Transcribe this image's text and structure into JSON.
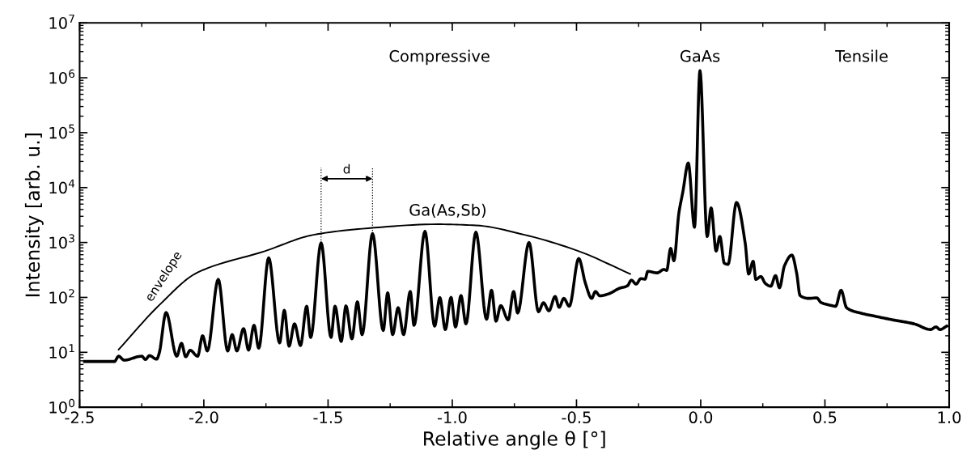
{
  "chart_data": {
    "type": "line",
    "xlabel": "Relative angle θ [°]",
    "ylabel": "Intensity [arb. u.]",
    "log": "y",
    "xlim": [
      -2.5,
      1.0
    ],
    "xticks": [
      {
        "value": -2.5,
        "label": "-2.5"
      },
      {
        "value": -2.0,
        "label": "-2.0"
      },
      {
        "value": -1.5,
        "label": "-1.5"
      },
      {
        "value": -1.0,
        "label": "-1.0"
      },
      {
        "value": -0.5,
        "label": "-0.5"
      },
      {
        "value": 0.0,
        "label": "0.0"
      },
      {
        "value": 0.5,
        "label": "0.5"
      },
      {
        "value": 1.0,
        "label": "1.0"
      }
    ],
    "ylim": [
      1,
      10000000
    ],
    "yticks": [
      {
        "value": 1,
        "label": "10$^{0}$"
      },
      {
        "value": 10,
        "label": "10$^{1}$"
      },
      {
        "value": 100,
        "label": "10$^{2}$"
      },
      {
        "value": 1000,
        "label": "10$^{3}$"
      },
      {
        "value": 10000,
        "label": "10$^{4}$"
      },
      {
        "value": 100000,
        "label": "10$^{5}$"
      },
      {
        "value": 1000000,
        "label": "10$^{6}$"
      },
      {
        "value": 10000000,
        "label": "10$^{7}$"
      }
    ],
    "grid": false,
    "legend": false,
    "marker": "none",
    "line_style": "solid",
    "series": [
      {
        "color": "#000000",
        "x": [
          -2.48,
          -2.36,
          -2.343,
          -2.321,
          -2.25,
          -2.235,
          -2.219,
          -2.19,
          -2.18,
          -2.152,
          -2.109,
          -2.09,
          -2.073,
          -2.055,
          -2.025,
          -2.005,
          -1.986,
          -1.942,
          -1.904,
          -1.886,
          -1.867,
          -1.84,
          -1.82,
          -1.798,
          -1.779,
          -1.739,
          -1.695,
          -1.676,
          -1.657,
          -1.635,
          -1.611,
          -1.586,
          -1.57,
          -1.528,
          -1.488,
          -1.472,
          -1.447,
          -1.428,
          -1.404,
          -1.382,
          -1.363,
          -1.321,
          -1.278,
          -1.26,
          -1.24,
          -1.218,
          -1.196,
          -1.169,
          -1.154,
          -1.11,
          -1.071,
          -1.05,
          -1.028,
          -1.005,
          -0.987,
          -0.965,
          -0.945,
          -0.905,
          -0.862,
          -0.842,
          -0.824,
          -0.805,
          -0.775,
          -0.753,
          -0.737,
          -0.691,
          -0.653,
          -0.633,
          -0.611,
          -0.586,
          -0.57,
          -0.551,
          -0.529,
          -0.491,
          -0.464,
          -0.439,
          -0.424,
          -0.406,
          -0.371,
          -0.328,
          -0.295,
          -0.279,
          -0.26,
          -0.241,
          -0.224,
          -0.213,
          -0.175,
          -0.148,
          -0.137,
          -0.121,
          -0.108,
          -0.088,
          -0.072,
          -0.05,
          -0.025,
          -0.003,
          0.026,
          0.042,
          0.062,
          0.077,
          0.095,
          0.11,
          0.144,
          0.179,
          0.193,
          0.211,
          0.222,
          0.242,
          0.26,
          0.282,
          0.301,
          0.317,
          0.337,
          0.367,
          0.386,
          0.4,
          0.435,
          0.467,
          0.484,
          0.522,
          0.543,
          0.565,
          0.587,
          0.642,
          0.696,
          0.773,
          0.859,
          0.925,
          0.947,
          0.963,
          0.99
        ],
        "values": [
          6.8,
          6.8,
          8.5,
          7.2,
          8.5,
          7.4,
          8.7,
          7.5,
          9.5,
          53,
          8.5,
          14.6,
          8.3,
          10.9,
          8.5,
          20,
          10.6,
          213,
          10.6,
          21,
          10.6,
          27,
          11,
          31,
          11.9,
          525,
          14.9,
          58,
          13,
          33,
          13.3,
          69,
          18.7,
          980,
          18.7,
          69,
          15.8,
          70,
          17.6,
          83,
          21,
          1450,
          25,
          121,
          21,
          65,
          21,
          128,
          31,
          1590,
          30,
          99,
          26,
          100,
          29,
          108,
          33,
          1540,
          40,
          135,
          37,
          71,
          39,
          128,
          52,
          1000,
          55,
          80,
          57,
          104,
          66,
          96,
          69,
          510,
          180,
          96,
          128,
          107,
          116,
          146,
          163,
          206,
          175,
          220,
          215,
          298,
          280,
          323,
          310,
          780,
          467,
          3400,
          8300,
          28000,
          1900,
          1350000,
          1290,
          4250,
          700,
          1290,
          420,
          400,
          5350,
          980,
          267,
          455,
          213,
          240,
          180,
          160,
          250,
          150,
          375,
          590,
          280,
          108,
          96,
          98,
          81,
          72,
          69,
          135,
          65,
          52,
          46,
          39,
          33,
          26,
          29,
          26,
          30
        ]
      },
      {
        "name": "envelope",
        "color": "#000000",
        "x": [
          -2.343,
          -2.18,
          -2.027,
          -1.755,
          -1.559,
          -1.363,
          -1.058,
          -0.905,
          -0.709,
          -0.491,
          -0.284
        ],
        "values": [
          11.2,
          72,
          282,
          695,
          1380,
          1780,
          2150,
          2050,
          1380,
          695,
          267
        ]
      }
    ],
    "ref_lines": [
      {
        "axis": "x",
        "value": -1.528,
        "line_style": "dotted",
        "color": "#000000"
      },
      {
        "axis": "x",
        "value": -1.321,
        "line_style": "dotted",
        "color": "#000000"
      }
    ],
    "annotations": [
      "d",
      "Ga(As,Sb)",
      "Compressive",
      "GaAs",
      "Tensile"
    ]
  }
}
